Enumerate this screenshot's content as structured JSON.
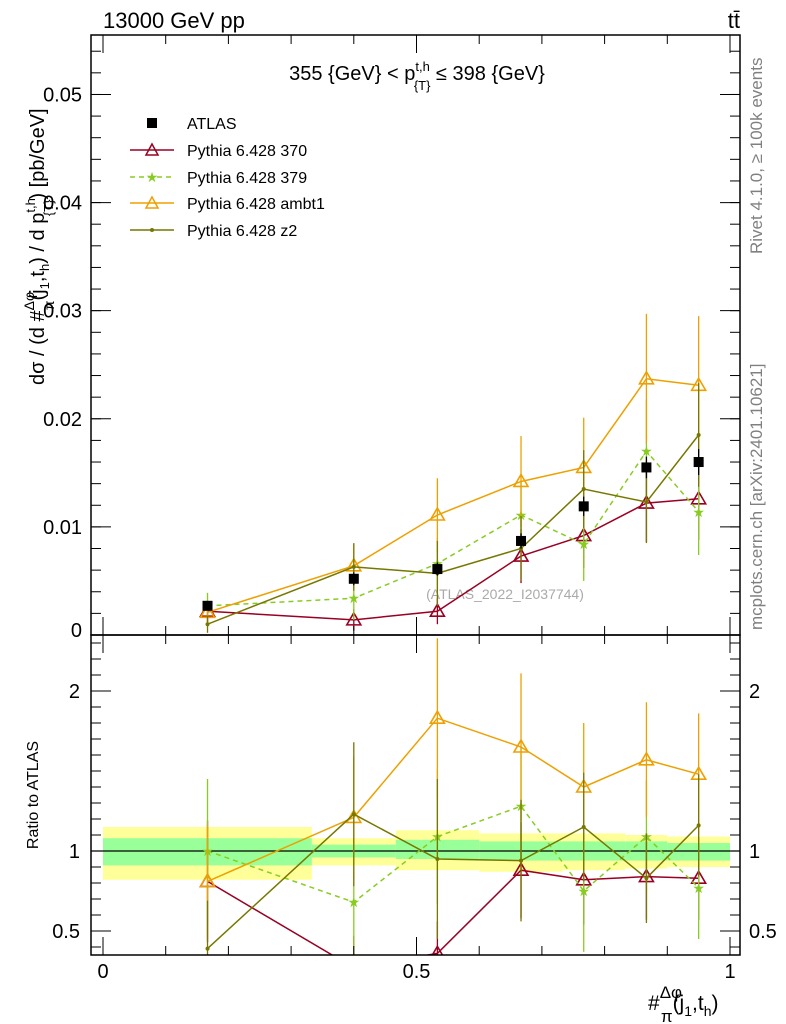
{
  "header": {
    "energy_label": "13000 GeV pp",
    "process_label": "tt̄"
  },
  "side_labels": {
    "rivet": "Rivet 4.1.0, ≥ 100k events",
    "mcplots": "mcplots.cern.ch [arXiv:2401.10621]"
  },
  "chart_data": [
    {
      "panel": "main",
      "type": "line",
      "title": "355 {GeV} < p_{T}^{t,h} ≤ 398 {GeV}",
      "title_parts": {
        "left": "355 {GeV} < p",
        "sup": "t,h",
        "sub": "{T}",
        "right": " ≤ 398 {GeV}"
      },
      "ylabel": "dσ / (d #Δφ/π(j1,th) / d pT^t,h) [pb/GeV]",
      "ylabel_parts": {
        "a": "dσ / (d #",
        "frac_num": "Δφ",
        "frac_den": "π",
        "b": "(j",
        "c": ",t",
        "d": ") / d p",
        "e": ") [pb/GeV]",
        "sub1": "1",
        "subh": "h",
        "supth": "t,h",
        "subT": "{T}"
      },
      "xlim": [
        0,
        1
      ],
      "ylim": [
        0,
        0.0555
      ],
      "yticks": [
        0,
        0.01,
        0.02,
        0.03,
        0.04,
        0.05
      ],
      "ytick_labels": [
        "0",
        "0.01",
        "0.02",
        "0.03",
        "0.04",
        "0.05"
      ],
      "watermark": "(ATLAS_2022_I2037744)",
      "legend_position": "top-left",
      "x": [
        0.1667,
        0.4,
        0.5333,
        0.6667,
        0.7667,
        0.8667,
        0.95
      ],
      "data": {
        "name": "ATLAS",
        "values": [
          0.0027,
          0.0052,
          0.0061,
          0.0087,
          0.0119,
          0.0155,
          0.016
        ],
        "errors": [
          0.0004,
          0.0006,
          0.0006,
          0.0007,
          0.0009,
          0.001,
          0.0012
        ],
        "color": "#000000"
      },
      "series": [
        {
          "name": "Pythia 6.428 370",
          "color": "#990022",
          "marker": "triangle-open",
          "dashed": false,
          "values": [
            0.0022,
            0.0014,
            0.0022,
            0.0073,
            0.0092,
            0.0122,
            0.0126
          ],
          "errors": [
            0.001,
            0.001,
            0.0012,
            0.0025,
            0.003,
            0.0036,
            0.0038
          ]
        },
        {
          "name": "Pythia 6.428 379",
          "color": "#88cc22",
          "marker": "star",
          "dashed": true,
          "values": [
            0.0027,
            0.0034,
            0.0066,
            0.0111,
            0.0084,
            0.017,
            0.0114
          ],
          "errors": [
            0.0012,
            0.002,
            0.0024,
            0.0032,
            0.0034,
            0.0048,
            0.004
          ]
        },
        {
          "name": "Pythia 6.428 ambt1",
          "color": "#eea000",
          "marker": "triangle-open",
          "dashed": false,
          "values": [
            0.0021,
            0.0064,
            0.0111,
            0.0142,
            0.0155,
            0.0237,
            0.0231
          ],
          "errors": [
            0.001,
            0.002,
            0.0034,
            0.0042,
            0.0046,
            0.006,
            0.0064
          ]
        },
        {
          "name": "Pythia 6.428 z2",
          "color": "#777700",
          "marker": "dot",
          "dashed": false,
          "values": [
            0.001,
            0.0063,
            0.0057,
            0.008,
            0.0135,
            0.0123,
            0.0185
          ],
          "errors": [
            0.0008,
            0.0022,
            0.003,
            0.003,
            0.0036,
            0.0038,
            0.0048
          ]
        }
      ]
    },
    {
      "panel": "ratio",
      "type": "line",
      "ylabel": "Ratio to ATLAS",
      "xlabel": "#Δφ/π(j1,th)",
      "xlabel_parts": {
        "hash": "#",
        "frac_num": "Δφ",
        "frac_den": "π",
        "a": "(j",
        "sub1": "1",
        "b": ",t",
        "subh": "h",
        "c": ")"
      },
      "xlim": [
        0,
        1
      ],
      "ylim": [
        0.35,
        2.35
      ],
      "xticks": [
        0,
        0.5,
        1
      ],
      "xtick_labels": [
        "0",
        "0.5",
        "1"
      ],
      "yticks": [
        0.5,
        1,
        2
      ],
      "ytick_labels": [
        "0.5",
        "1",
        "2"
      ],
      "bins": [
        {
          "lo": 0.0,
          "hi": 0.333,
          "inner": [
            0.91,
            1.08
          ],
          "outer": [
            0.82,
            1.15
          ]
        },
        {
          "lo": 0.333,
          "hi": 0.467,
          "inner": [
            0.96,
            1.04
          ],
          "outer": [
            0.91,
            1.08
          ]
        },
        {
          "lo": 0.467,
          "hi": 0.6,
          "inner": [
            0.95,
            1.07
          ],
          "outer": [
            0.88,
            1.13
          ]
        },
        {
          "lo": 0.6,
          "hi": 0.733,
          "inner": [
            0.94,
            1.06
          ],
          "outer": [
            0.87,
            1.11
          ]
        },
        {
          "lo": 0.733,
          "hi": 0.833,
          "inner": [
            0.94,
            1.06
          ],
          "outer": [
            0.88,
            1.11
          ]
        },
        {
          "lo": 0.833,
          "hi": 0.9,
          "inner": [
            0.94,
            1.06
          ],
          "outer": [
            0.89,
            1.1
          ]
        },
        {
          "lo": 0.9,
          "hi": 1.0,
          "inner": [
            0.94,
            1.05
          ],
          "outer": [
            0.9,
            1.09
          ]
        }
      ],
      "series": [
        {
          "name": "Pythia 6.428 370",
          "values": [
            0.81,
            0.27,
            0.36,
            0.88,
            0.82,
            0.84,
            0.83
          ],
          "errors": [
            0.38,
            0.2,
            0.2,
            0.3,
            0.28,
            0.27,
            0.26
          ]
        },
        {
          "name": "Pythia 6.428 379",
          "values": [
            1.0,
            0.68,
            1.09,
            1.28,
            0.75,
            1.09,
            0.77
          ],
          "errors": [
            0.45,
            0.4,
            0.42,
            0.37,
            0.38,
            0.35,
            0.32
          ]
        },
        {
          "name": "Pythia 6.428 ambt1",
          "values": [
            0.81,
            1.21,
            1.83,
            1.65,
            1.4,
            1.57,
            1.48
          ],
          "errors": [
            0.35,
            0.38,
            0.5,
            0.46,
            0.4,
            0.36,
            0.38
          ]
        },
        {
          "name": "Pythia 6.428 z2",
          "values": [
            0.39,
            1.23,
            0.95,
            0.94,
            1.15,
            0.83,
            1.16
          ],
          "errors": [
            0.3,
            0.45,
            0.5,
            0.38,
            0.34,
            0.28,
            0.32
          ]
        }
      ]
    }
  ]
}
